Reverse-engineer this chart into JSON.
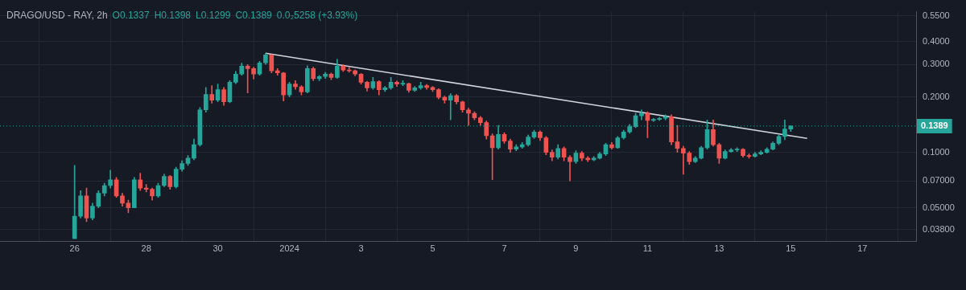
{
  "chart_data": {
    "type": "candlestick",
    "title": "DRAGO/USD - RAY, 2h",
    "annotations": [
      "O0.1337",
      "H0.1398",
      "L0.1299",
      "C0.1389",
      "0.0₂5258 (+3.93%)"
    ],
    "x": [
      "2023-12-26T00:00",
      "2023-12-26T04:00",
      "2023-12-26T08:00",
      "2023-12-26T12:00",
      "2023-12-26T16:00",
      "2023-12-26T20:00",
      "2023-12-27T00:00",
      "2023-12-27T04:00",
      "2023-12-27T08:00",
      "2023-12-27T12:00",
      "2023-12-27T16:00",
      "2023-12-27T20:00",
      "2023-12-28T00:00",
      "2023-12-28T04:00",
      "2023-12-28T08:00",
      "2023-12-28T12:00",
      "2023-12-28T16:00",
      "2023-12-28T20:00",
      "2023-12-29T00:00",
      "2023-12-29T04:00",
      "2023-12-29T08:00",
      "2023-12-29T12:00",
      "2023-12-29T16:00",
      "2023-12-29T20:00",
      "2023-12-30T00:00",
      "2023-12-30T04:00",
      "2023-12-30T08:00",
      "2023-12-30T12:00",
      "2023-12-30T16:00",
      "2023-12-30T20:00",
      "2023-12-31T00:00",
      "2023-12-31T04:00",
      "2023-12-31T08:00",
      "2023-12-31T12:00",
      "2023-12-31T16:00",
      "2023-12-31T20:00",
      "2024-01-01T00:00",
      "2024-01-01T04:00",
      "2024-01-01T08:00",
      "2024-01-01T12:00",
      "2024-01-01T16:00",
      "2024-01-01T20:00",
      "2024-01-02T00:00",
      "2024-01-02T04:00",
      "2024-01-02T08:00",
      "2024-01-02T12:00",
      "2024-01-02T16:00",
      "2024-01-02T20:00",
      "2024-01-03T00:00",
      "2024-01-03T04:00",
      "2024-01-03T08:00",
      "2024-01-03T12:00",
      "2024-01-03T16:00",
      "2024-01-03T20:00",
      "2024-01-04T00:00",
      "2024-01-04T04:00",
      "2024-01-04T08:00",
      "2024-01-04T12:00",
      "2024-01-04T16:00",
      "2024-01-04T20:00",
      "2024-01-05T00:00",
      "2024-01-05T04:00",
      "2024-01-05T08:00",
      "2024-01-05T12:00",
      "2024-01-05T16:00",
      "2024-01-05T20:00",
      "2024-01-06T00:00",
      "2024-01-06T04:00",
      "2024-01-06T08:00",
      "2024-01-06T12:00",
      "2024-01-06T16:00",
      "2024-01-06T20:00",
      "2024-01-07T00:00",
      "2024-01-07T04:00",
      "2024-01-07T08:00",
      "2024-01-07T12:00",
      "2024-01-07T16:00",
      "2024-01-07T20:00",
      "2024-01-08T00:00",
      "2024-01-08T04:00",
      "2024-01-08T08:00",
      "2024-01-08T12:00",
      "2024-01-08T16:00",
      "2024-01-08T20:00",
      "2024-01-09T00:00",
      "2024-01-09T04:00",
      "2024-01-09T08:00",
      "2024-01-09T12:00",
      "2024-01-09T16:00",
      "2024-01-09T20:00",
      "2024-01-10T00:00",
      "2024-01-10T04:00",
      "2024-01-10T08:00",
      "2024-01-10T12:00",
      "2024-01-10T16:00",
      "2024-01-10T20:00",
      "2024-01-11T00:00",
      "2024-01-11T04:00",
      "2024-01-11T08:00",
      "2024-01-11T12:00",
      "2024-01-11T16:00",
      "2024-01-11T20:00",
      "2024-01-12T00:00",
      "2024-01-12T04:00",
      "2024-01-12T08:00",
      "2024-01-12T12:00",
      "2024-01-12T16:00",
      "2024-01-12T20:00",
      "2024-01-13T00:00",
      "2024-01-13T04:00",
      "2024-01-13T08:00",
      "2024-01-13T12:00",
      "2024-01-13T16:00",
      "2024-01-13T20:00",
      "2024-01-14T00:00",
      "2024-01-14T04:00",
      "2024-01-14T08:00",
      "2024-01-14T12:00",
      "2024-01-14T16:00",
      "2024-01-14T20:00",
      "2024-01-15T00:00"
    ],
    "ohlc": [
      [
        0.034,
        0.085,
        0.034,
        0.045
      ],
      [
        0.045,
        0.062,
        0.044,
        0.058
      ],
      [
        0.058,
        0.064,
        0.042,
        0.044
      ],
      [
        0.044,
        0.053,
        0.043,
        0.051
      ],
      [
        0.051,
        0.062,
        0.05,
        0.06
      ],
      [
        0.06,
        0.068,
        0.058,
        0.066
      ],
      [
        0.066,
        0.08,
        0.064,
        0.071
      ],
      [
        0.071,
        0.073,
        0.057,
        0.058
      ],
      [
        0.058,
        0.06,
        0.051,
        0.053
      ],
      [
        0.053,
        0.055,
        0.047,
        0.05
      ],
      [
        0.05,
        0.073,
        0.05,
        0.071
      ],
      [
        0.071,
        0.077,
        0.062,
        0.064
      ],
      [
        0.064,
        0.067,
        0.061,
        0.063
      ],
      [
        0.063,
        0.064,
        0.055,
        0.058
      ],
      [
        0.058,
        0.068,
        0.057,
        0.066
      ],
      [
        0.066,
        0.076,
        0.065,
        0.074
      ],
      [
        0.074,
        0.075,
        0.063,
        0.065
      ],
      [
        0.065,
        0.083,
        0.064,
        0.081
      ],
      [
        0.081,
        0.09,
        0.079,
        0.087
      ],
      [
        0.087,
        0.096,
        0.085,
        0.093
      ],
      [
        0.093,
        0.118,
        0.091,
        0.11
      ],
      [
        0.11,
        0.175,
        0.108,
        0.17
      ],
      [
        0.17,
        0.225,
        0.165,
        0.206
      ],
      [
        0.206,
        0.23,
        0.185,
        0.192
      ],
      [
        0.192,
        0.235,
        0.188,
        0.219
      ],
      [
        0.219,
        0.225,
        0.18,
        0.188
      ],
      [
        0.188,
        0.245,
        0.186,
        0.24
      ],
      [
        0.24,
        0.275,
        0.236,
        0.266
      ],
      [
        0.266,
        0.305,
        0.262,
        0.294
      ],
      [
        0.294,
        0.3,
        0.21,
        0.285
      ],
      [
        0.285,
        0.29,
        0.25,
        0.266
      ],
      [
        0.266,
        0.312,
        0.262,
        0.306
      ],
      [
        0.306,
        0.345,
        0.3,
        0.338
      ],
      [
        0.338,
        0.34,
        0.27,
        0.277
      ],
      [
        0.277,
        0.285,
        0.262,
        0.27
      ],
      [
        0.27,
        0.272,
        0.19,
        0.205
      ],
      [
        0.205,
        0.24,
        0.2,
        0.235
      ],
      [
        0.235,
        0.245,
        0.22,
        0.227
      ],
      [
        0.227,
        0.23,
        0.205,
        0.213
      ],
      [
        0.213,
        0.295,
        0.21,
        0.285
      ],
      [
        0.285,
        0.29,
        0.245,
        0.251
      ],
      [
        0.251,
        0.262,
        0.245,
        0.258
      ],
      [
        0.258,
        0.272,
        0.252,
        0.266
      ],
      [
        0.266,
        0.27,
        0.248,
        0.255
      ],
      [
        0.255,
        0.32,
        0.252,
        0.294
      ],
      [
        0.294,
        0.3,
        0.275,
        0.28
      ],
      [
        0.28,
        0.29,
        0.272,
        0.277
      ],
      [
        0.277,
        0.28,
        0.26,
        0.266
      ],
      [
        0.266,
        0.268,
        0.235,
        0.24
      ],
      [
        0.24,
        0.243,
        0.215,
        0.224
      ],
      [
        0.224,
        0.255,
        0.22,
        0.242
      ],
      [
        0.242,
        0.245,
        0.205,
        0.219
      ],
      [
        0.219,
        0.228,
        0.214,
        0.224
      ],
      [
        0.224,
        0.255,
        0.22,
        0.24
      ],
      [
        0.24,
        0.244,
        0.228,
        0.235
      ],
      [
        0.235,
        0.245,
        0.23,
        0.236
      ],
      [
        0.236,
        0.238,
        0.212,
        0.217
      ],
      [
        0.217,
        0.228,
        0.214,
        0.224
      ],
      [
        0.224,
        0.24,
        0.22,
        0.23
      ],
      [
        0.23,
        0.234,
        0.22,
        0.225
      ],
      [
        0.225,
        0.228,
        0.214,
        0.219
      ],
      [
        0.219,
        0.222,
        0.195,
        0.199
      ],
      [
        0.199,
        0.202,
        0.185,
        0.192
      ],
      [
        0.192,
        0.208,
        0.15,
        0.203
      ],
      [
        0.203,
        0.206,
        0.183,
        0.188
      ],
      [
        0.188,
        0.19,
        0.165,
        0.17
      ],
      [
        0.17,
        0.174,
        0.14,
        0.163
      ],
      [
        0.163,
        0.166,
        0.15,
        0.154
      ],
      [
        0.154,
        0.157,
        0.14,
        0.145
      ],
      [
        0.145,
        0.148,
        0.118,
        0.123
      ],
      [
        0.123,
        0.126,
        0.071,
        0.106
      ],
      [
        0.106,
        0.14,
        0.104,
        0.125
      ],
      [
        0.125,
        0.128,
        0.112,
        0.115
      ],
      [
        0.115,
        0.118,
        0.1,
        0.104
      ],
      [
        0.104,
        0.11,
        0.102,
        0.107
      ],
      [
        0.107,
        0.113,
        0.105,
        0.11
      ],
      [
        0.11,
        0.124,
        0.108,
        0.121
      ],
      [
        0.121,
        0.132,
        0.119,
        0.129
      ],
      [
        0.129,
        0.131,
        0.116,
        0.12
      ],
      [
        0.12,
        0.122,
        0.097,
        0.1
      ],
      [
        0.1,
        0.103,
        0.09,
        0.094
      ],
      [
        0.094,
        0.11,
        0.092,
        0.105
      ],
      [
        0.105,
        0.107,
        0.09,
        0.094
      ],
      [
        0.094,
        0.096,
        0.07,
        0.089
      ],
      [
        0.089,
        0.102,
        0.087,
        0.099
      ],
      [
        0.099,
        0.101,
        0.09,
        0.093
      ],
      [
        0.093,
        0.095,
        0.089,
        0.091
      ],
      [
        0.091,
        0.095,
        0.09,
        0.093
      ],
      [
        0.093,
        0.1,
        0.092,
        0.098
      ],
      [
        0.098,
        0.112,
        0.096,
        0.11
      ],
      [
        0.11,
        0.113,
        0.104,
        0.106
      ],
      [
        0.106,
        0.122,
        0.105,
        0.12
      ],
      [
        0.12,
        0.132,
        0.118,
        0.129
      ],
      [
        0.129,
        0.142,
        0.127,
        0.138
      ],
      [
        0.138,
        0.163,
        0.136,
        0.158
      ],
      [
        0.158,
        0.17,
        0.15,
        0.163
      ],
      [
        0.163,
        0.166,
        0.12,
        0.149
      ],
      [
        0.149,
        0.153,
        0.147,
        0.151
      ],
      [
        0.151,
        0.155,
        0.149,
        0.153
      ],
      [
        0.153,
        0.16,
        0.15,
        0.156
      ],
      [
        0.156,
        0.16,
        0.11,
        0.114
      ],
      [
        0.114,
        0.14,
        0.1,
        0.105
      ],
      [
        0.105,
        0.108,
        0.076,
        0.099
      ],
      [
        0.099,
        0.101,
        0.086,
        0.089
      ],
      [
        0.089,
        0.095,
        0.088,
        0.093
      ],
      [
        0.093,
        0.108,
        0.092,
        0.106
      ],
      [
        0.106,
        0.15,
        0.104,
        0.133
      ],
      [
        0.133,
        0.15,
        0.108,
        0.11
      ],
      [
        0.11,
        0.112,
        0.087,
        0.093
      ],
      [
        0.093,
        0.103,
        0.092,
        0.101
      ],
      [
        0.101,
        0.105,
        0.1,
        0.103
      ],
      [
        0.103,
        0.106,
        0.101,
        0.104
      ],
      [
        0.104,
        0.105,
        0.094,
        0.096
      ],
      [
        0.096,
        0.098,
        0.093,
        0.095
      ],
      [
        0.095,
        0.1,
        0.094,
        0.098
      ],
      [
        0.098,
        0.102,
        0.097,
        0.1
      ],
      [
        0.1,
        0.106,
        0.099,
        0.104
      ],
      [
        0.104,
        0.114,
        0.103,
        0.112
      ],
      [
        0.112,
        0.124,
        0.11,
        0.122
      ],
      [
        0.122,
        0.15,
        0.117,
        0.1337
      ],
      [
        0.1337,
        0.1398,
        0.1299,
        0.1389
      ]
    ],
    "colors": [
      "#26a69a",
      "#26a69a",
      "#ef5350",
      "#26a69a",
      "#26a69a",
      "#26a69a",
      "#26a69a",
      "#ef5350",
      "#ef5350",
      "#ef5350",
      "#26a69a",
      "#ef5350",
      "#ef5350",
      "#ef5350",
      "#26a69a",
      "#26a69a",
      "#ef5350",
      "#26a69a",
      "#26a69a",
      "#26a69a",
      "#26a69a",
      "#26a69a",
      "#26a69a",
      "#ef5350",
      "#26a69a",
      "#ef5350",
      "#26a69a",
      "#26a69a",
      "#26a69a",
      "#ef5350",
      "#ef5350",
      "#26a69a",
      "#26a69a",
      "#ef5350",
      "#ef5350",
      "#ef5350",
      "#26a69a",
      "#ef5350",
      "#ef5350",
      "#26a69a",
      "#ef5350",
      "#26a69a",
      "#26a69a",
      "#ef5350",
      "#26a69a",
      "#ef5350",
      "#ef5350",
      "#ef5350",
      "#ef5350",
      "#ef5350",
      "#26a69a",
      "#ef5350",
      "#26a69a",
      "#26a69a",
      "#ef5350",
      "#26a69a",
      "#ef5350",
      "#26a69a",
      "#26a69a",
      "#ef5350",
      "#ef5350",
      "#ef5350",
      "#ef5350",
      "#26a69a",
      "#ef5350",
      "#ef5350",
      "#ef5350",
      "#ef5350",
      "#ef5350",
      "#ef5350",
      "#ef5350",
      "#26a69a",
      "#ef5350",
      "#ef5350",
      "#26a69a",
      "#26a69a",
      "#26a69a",
      "#26a69a",
      "#ef5350",
      "#ef5350",
      "#ef5350",
      "#26a69a",
      "#ef5350",
      "#ef5350",
      "#26a69a",
      "#ef5350",
      "#ef5350",
      "#26a69a",
      "#26a69a",
      "#26a69a",
      "#ef5350",
      "#26a69a",
      "#26a69a",
      "#26a69a",
      "#26a69a",
      "#26a69a",
      "#ef5350",
      "#26a69a",
      "#26a69a",
      "#26a69a",
      "#ef5350",
      "#ef5350",
      "#ef5350",
      "#ef5350",
      "#26a69a",
      "#26a69a",
      "#26a69a",
      "#ef5350",
      "#ef5350",
      "#26a69a",
      "#26a69a",
      "#26a69a",
      "#ef5350",
      "#ef5350",
      "#26a69a",
      "#26a69a",
      "#26a69a",
      "#26a69a",
      "#26a69a",
      "#26a69a",
      "#26a69a"
    ],
    "series": [
      {
        "type": "line",
        "color": "#d1d4dc",
        "x": [
          "2023-12-31T08:00",
          "2024-01-15T11:00"
        ],
        "values": [
          0.345,
          0.119
        ]
      }
    ],
    "ref_lines": [
      {
        "axis": "y",
        "value": 0.1389,
        "label": "0.1389",
        "color": "#26a69a",
        "line_style": "dotted"
      }
    ],
    "log": "y",
    "xlim": [
      "2023-12-23T22:00",
      "2024-01-18T12:00"
    ],
    "xticks": [
      {
        "value": "2023-12-26",
        "label": "26"
      },
      {
        "value": "2023-12-28",
        "label": "28"
      },
      {
        "value": "2023-12-30",
        "label": "30"
      },
      {
        "value": "2024-01-01",
        "label": "2024"
      },
      {
        "value": "2024-01-03",
        "label": "3"
      },
      {
        "value": "2024-01-05",
        "label": "5"
      },
      {
        "value": "2024-01-07",
        "label": "7"
      },
      {
        "value": "2024-01-09",
        "label": "9"
      },
      {
        "value": "2024-01-11",
        "label": "11"
      },
      {
        "value": "2024-01-13",
        "label": "13"
      },
      {
        "value": "2024-01-15",
        "label": "15"
      },
      {
        "value": "2024-01-17",
        "label": "17"
      }
    ],
    "ylim": [
      0.033,
      0.58
    ],
    "yticks": [
      {
        "value": 0.038,
        "label": "0.03800"
      },
      {
        "value": 0.05,
        "label": "0.05000"
      },
      {
        "value": 0.07,
        "label": "0.07000"
      },
      {
        "value": 0.1,
        "label": "0.1000"
      },
      {
        "value": 0.2,
        "label": "0.2000"
      },
      {
        "value": 0.3,
        "label": "0.3000"
      },
      {
        "value": 0.4,
        "label": "0.4000"
      },
      {
        "value": 0.55,
        "label": "0.5500"
      }
    ],
    "grid": true
  }
}
